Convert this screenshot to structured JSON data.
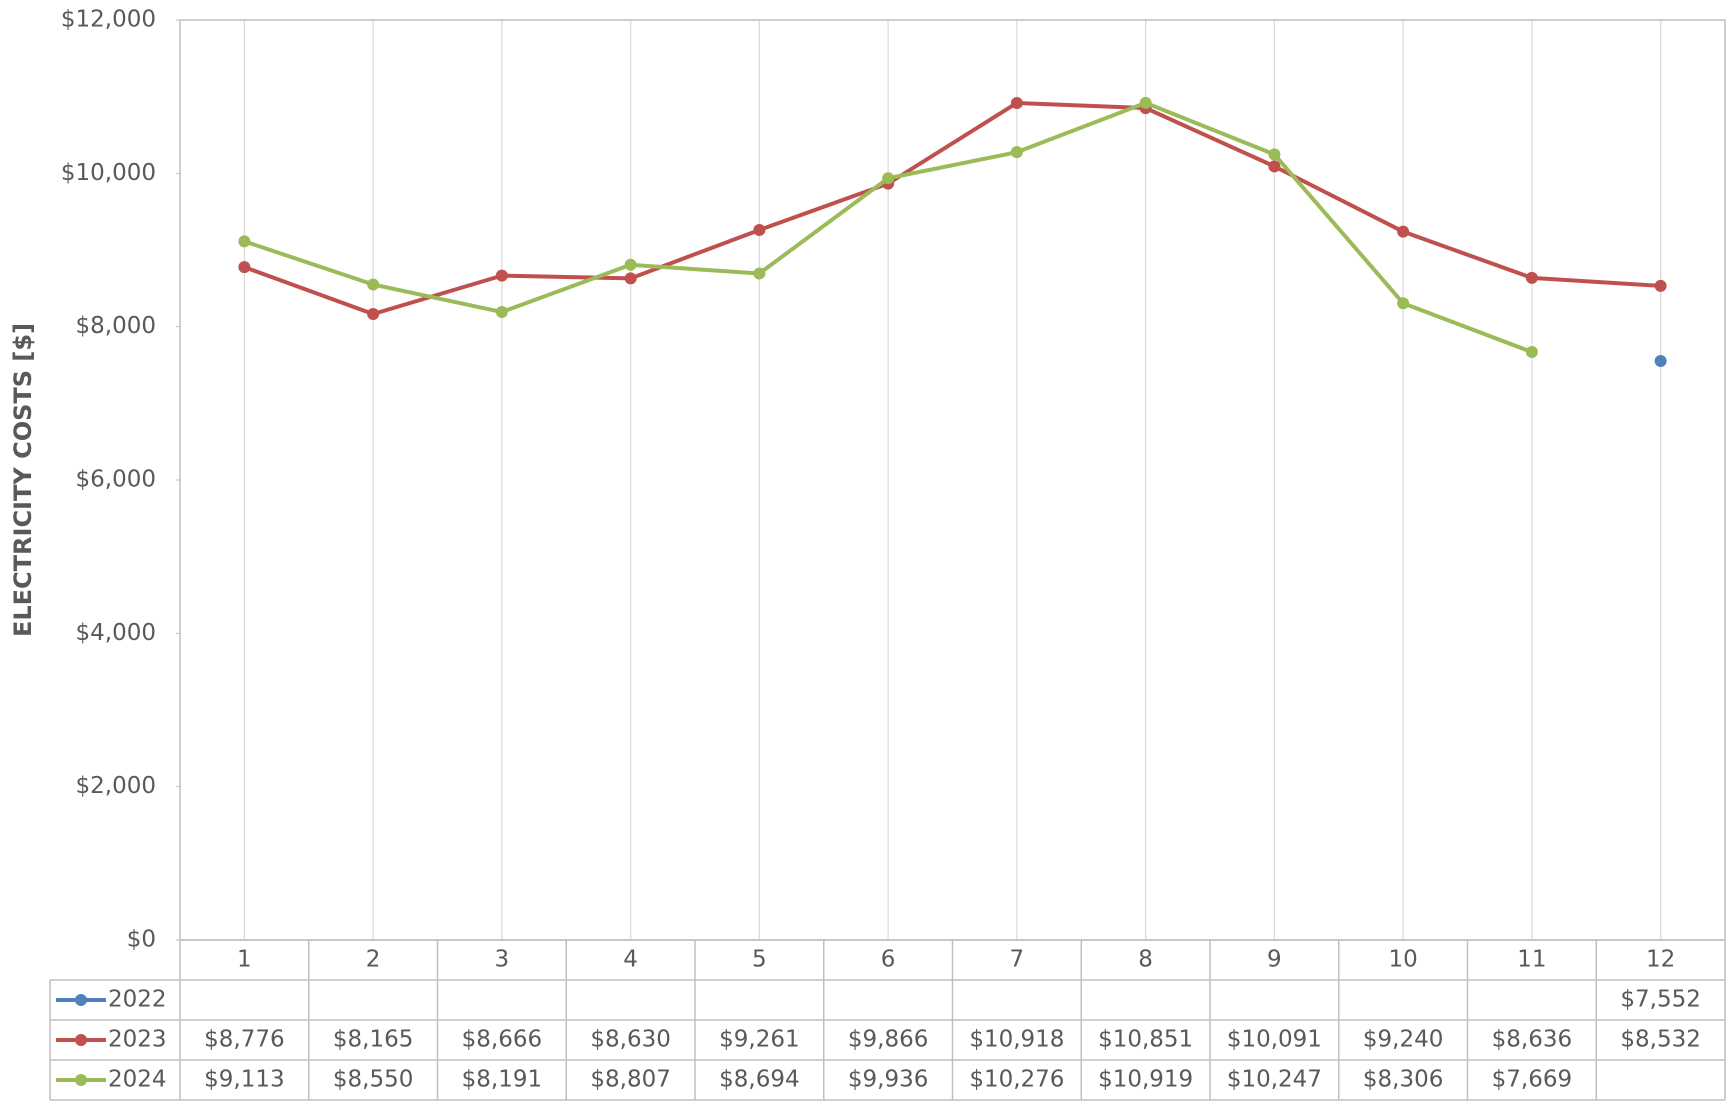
{
  "chart_data": {
    "type": "line",
    "y_axis_label": "ELECTRICITY COSTS [$]",
    "categories": [
      "1",
      "2",
      "3",
      "4",
      "5",
      "6",
      "7",
      "8",
      "9",
      "10",
      "11",
      "12"
    ],
    "series": [
      {
        "name": "2022",
        "color": "#4f81bd",
        "values": [
          null,
          null,
          null,
          null,
          null,
          null,
          null,
          null,
          null,
          null,
          null,
          7552
        ],
        "value_labels": [
          null,
          null,
          null,
          null,
          null,
          null,
          null,
          null,
          null,
          null,
          null,
          "$7,552"
        ]
      },
      {
        "name": "2023",
        "color": "#c0504d",
        "values": [
          8776,
          8165,
          8666,
          8630,
          9261,
          9866,
          10918,
          10851,
          10091,
          9240,
          8636,
          8532
        ],
        "value_labels": [
          "$8,776",
          "$8,165",
          "$8,666",
          "$8,630",
          "$9,261",
          "$9,866",
          "$10,918",
          "$10,851",
          "$10,091",
          "$9,240",
          "$8,636",
          "$8,532"
        ]
      },
      {
        "name": "2024",
        "color": "#9bbb59",
        "values": [
          9113,
          8550,
          8191,
          8807,
          8694,
          9936,
          10276,
          10919,
          10247,
          8306,
          7669,
          null
        ],
        "value_labels": [
          "$9,113",
          "$8,550",
          "$8,191",
          "$8,807",
          "$8,694",
          "$9,936",
          "$10,276",
          "$10,919",
          "$10,247",
          "$8,306",
          "$7,669",
          null
        ]
      }
    ],
    "ylim": [
      0,
      12000
    ],
    "yticks": [
      {
        "value": 0,
        "label": "$0"
      },
      {
        "value": 2000,
        "label": "$2,000"
      },
      {
        "value": 4000,
        "label": "$4,000"
      },
      {
        "value": 6000,
        "label": "$6,000"
      },
      {
        "value": 8000,
        "label": "$8,000"
      },
      {
        "value": 10000,
        "label": "$10,000"
      },
      {
        "value": 12000,
        "label": "$12,000"
      }
    ],
    "grid": true,
    "legend": "table"
  }
}
